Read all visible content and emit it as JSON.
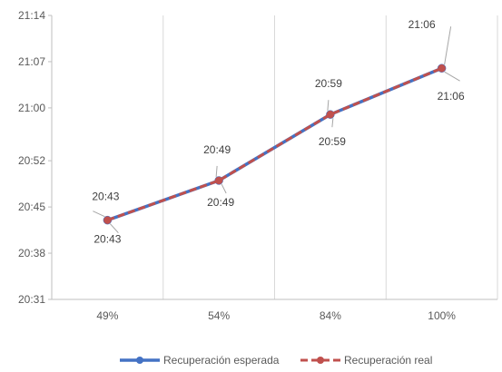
{
  "chart_data": {
    "type": "line",
    "categories": [
      "49%",
      "54%",
      "84%",
      "100%"
    ],
    "y_ticks": [
      "20:31",
      "20:38",
      "20:45",
      "20:52",
      "21:00",
      "21:07",
      "21:14"
    ],
    "ylim": [
      "20:31",
      "21:14"
    ],
    "grid": "vertical",
    "legend_position": "bottom",
    "series": [
      {
        "name": "Recuperación esperada",
        "values": [
          "20:43",
          "20:49",
          "20:59",
          "21:06"
        ],
        "labels": [
          "20:43",
          "20:49",
          "20:59",
          "21:06"
        ],
        "color": "#4472C4",
        "style": "solid"
      },
      {
        "name": "Recuperación real",
        "values": [
          "20:43",
          "20:49",
          "20:59",
          "21:06"
        ],
        "labels": [
          "20:43",
          "20:49",
          "20:59",
          "21:06"
        ],
        "color": "#C0504D",
        "style": "dashed"
      }
    ]
  }
}
